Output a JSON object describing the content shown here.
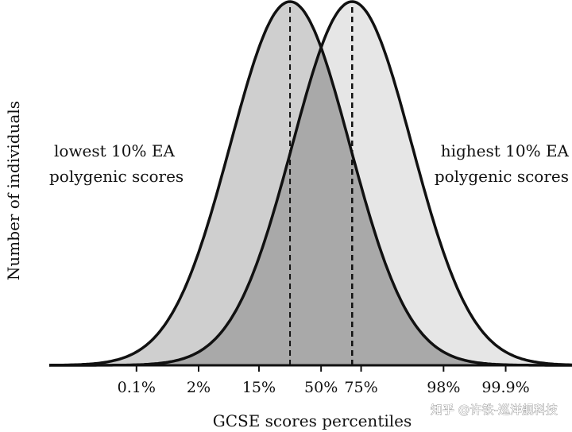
{
  "chart_data": {
    "type": "area",
    "title": "",
    "xlabel": "GCSE scores percentiles",
    "ylabel": "Number of individuals",
    "xticks": [
      {
        "label": "0.1%",
        "z": -3.09
      },
      {
        "label": "2%",
        "z": -2.05
      },
      {
        "label": "15%",
        "z": -1.04
      },
      {
        "label": "50%",
        "z": 0
      },
      {
        "label": "75%",
        "z": 0.67
      },
      {
        "label": "98%",
        "z": 2.05
      },
      {
        "label": "99.9%",
        "z": 3.09
      }
    ],
    "xlim": [
      -4.55,
      4.2
    ],
    "series": [
      {
        "key": "low",
        "mean": -0.52,
        "sd": 1.0,
        "fill": "#cfcfcf"
      },
      {
        "key": "high",
        "mean": 0.52,
        "sd": 1.0,
        "fill": "#e6e6e6"
      }
    ],
    "overlap_fill": "#a9a9a9",
    "annotations": {
      "low_line1": "lowest 10% EA",
      "low_line2": "polygenic scores",
      "high_line1": "highest 10% EA",
      "high_line2": "polygenic scores"
    }
  },
  "watermark": "知乎 @许铁-巡洋舰科技"
}
